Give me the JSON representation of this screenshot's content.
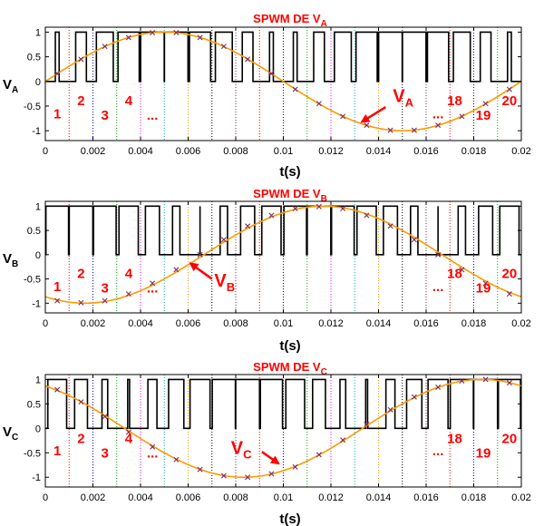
{
  "colors": {
    "sine": "#ff9900",
    "pwm": "#000000",
    "marker": "#7a2a5a",
    "annotation": "#ff0000",
    "axis": "#000000",
    "boundary_palette": [
      "#ff0000",
      "#0000ff",
      "#00aa00",
      "#ff00ff",
      "#00aaaa",
      "#ff9900",
      "#000000",
      "#7a2a5a"
    ]
  },
  "chart_data": [
    {
      "type": "line",
      "title": "SPWM DE V",
      "title_sub": "A",
      "ylabel": "V",
      "ylabel_sub": "A",
      "xlabel": "t(s)",
      "xlim": [
        0,
        0.02
      ],
      "ylim": [
        -1.2,
        1.1
      ],
      "xticks": [
        0,
        0.002,
        0.004,
        0.006,
        0.008,
        0.01,
        0.012,
        0.014,
        0.016,
        0.018,
        0.02
      ],
      "xtick_labels": [
        "0",
        "0.002",
        "0.004",
        "0.006",
        "0.008",
        "0.01",
        "0.012",
        "0.014",
        "0.016",
        "0.018",
        "0.02"
      ],
      "yticks": [
        -1,
        -0.5,
        0,
        0.5,
        1
      ],
      "ytick_labels": [
        "-1",
        "-0.5",
        "0",
        "0.5",
        "1"
      ],
      "sampling_period": 0.001,
      "sample_times": [
        0.0005,
        0.0015,
        0.0025,
        0.0035,
        0.0045,
        0.0055,
        0.0065,
        0.0075,
        0.0085,
        0.0095,
        0.0105,
        0.0115,
        0.0125,
        0.0135,
        0.0145,
        0.0155,
        0.0165,
        0.0175,
        0.0185,
        0.0195
      ],
      "series": [
        {
          "kind": "sine",
          "amplitude": 1.0,
          "phase_deg": 0,
          "frequency_hz": 50
        },
        {
          "kind": "samples",
          "values": [
            0.16,
            0.45,
            0.71,
            0.89,
            0.99,
            0.99,
            0.89,
            0.71,
            0.45,
            0.16,
            -0.16,
            -0.45,
            -0.71,
            -0.89,
            -0.99,
            -0.99,
            -0.89,
            -0.71,
            -0.45,
            -0.16
          ]
        },
        {
          "kind": "pwm",
          "duty": [
            0.16,
            0.45,
            0.71,
            0.89,
            0.99,
            0.99,
            0.89,
            0.71,
            0.45,
            0.16,
            -0.16,
            -0.45,
            -0.71,
            -0.89,
            -0.99,
            -0.99,
            -0.89,
            -0.71,
            -0.45,
            -0.16
          ]
        }
      ],
      "segment_labels": [
        {
          "text": "1",
          "x": 0.0005,
          "y": -0.75
        },
        {
          "text": "2",
          "x": 0.0015,
          "y": -0.48
        },
        {
          "text": "3",
          "x": 0.0025,
          "y": -0.78
        },
        {
          "text": "4",
          "x": 0.0035,
          "y": -0.48
        },
        {
          "text": "...",
          "x": 0.0045,
          "y": -0.78
        },
        {
          "text": "...",
          "x": 0.0165,
          "y": -0.75
        },
        {
          "text": "18",
          "x": 0.0172,
          "y": -0.48
        },
        {
          "text": "19",
          "x": 0.0184,
          "y": -0.78
        },
        {
          "text": "20",
          "x": 0.0195,
          "y": -0.48
        }
      ],
      "callout": {
        "text": "V",
        "sub": "A",
        "text_x": 0.0146,
        "text_y": -0.42,
        "arrow_from_x": 0.0143,
        "arrow_from_y": -0.52,
        "arrow_to_x": 0.0133,
        "arrow_to_y": -0.82
      }
    },
    {
      "type": "line",
      "title": "SPWM DE V",
      "title_sub": "B",
      "ylabel": "V",
      "ylabel_sub": "B",
      "xlabel": "t(s)",
      "xlim": [
        0,
        0.02
      ],
      "ylim": [
        -1.2,
        1.1
      ],
      "xticks": [
        0,
        0.002,
        0.004,
        0.006,
        0.008,
        0.01,
        0.012,
        0.014,
        0.016,
        0.018,
        0.02
      ],
      "xtick_labels": [
        "0",
        "0.002",
        "0.004",
        "0.006",
        "0.008",
        "0.01",
        "0.012",
        "0.014",
        "0.016",
        "0.018",
        "0.02"
      ],
      "yticks": [
        -1,
        -0.5,
        0,
        0.5,
        1
      ],
      "ytick_labels": [
        "-1",
        "-0.5",
        "0",
        "0.5",
        "1"
      ],
      "sampling_period": 0.001,
      "sample_times": [
        0.0005,
        0.0015,
        0.0025,
        0.0035,
        0.0045,
        0.0055,
        0.0065,
        0.0075,
        0.0085,
        0.0095,
        0.0105,
        0.0115,
        0.0125,
        0.0135,
        0.0145,
        0.0155,
        0.0165,
        0.0175,
        0.0185,
        0.0195
      ],
      "series": [
        {
          "kind": "sine",
          "amplitude": 1.0,
          "phase_deg": -120,
          "frequency_hz": 50
        },
        {
          "kind": "samples",
          "values": [
            -0.95,
            -0.99,
            -0.95,
            -0.81,
            -0.59,
            -0.31,
            0.0,
            0.31,
            0.59,
            0.81,
            0.95,
            0.99,
            0.95,
            0.81,
            0.59,
            0.31,
            0.0,
            -0.31,
            -0.59,
            -0.81
          ]
        },
        {
          "kind": "pwm",
          "duty": [
            -0.95,
            -0.99,
            -0.95,
            -0.81,
            -0.59,
            -0.31,
            0.0,
            0.31,
            0.59,
            0.81,
            0.95,
            0.99,
            0.95,
            0.81,
            0.59,
            0.31,
            0.0,
            -0.31,
            -0.59,
            -0.81
          ]
        }
      ],
      "segment_labels": [
        {
          "text": "1",
          "x": 0.0005,
          "y": -0.75
        },
        {
          "text": "2",
          "x": 0.0015,
          "y": -0.48
        },
        {
          "text": "3",
          "x": 0.0025,
          "y": -0.78
        },
        {
          "text": "4",
          "x": 0.0035,
          "y": -0.48
        },
        {
          "text": "...",
          "x": 0.0045,
          "y": -0.78
        },
        {
          "text": "...",
          "x": 0.0165,
          "y": -0.75
        },
        {
          "text": "18",
          "x": 0.0172,
          "y": -0.48
        },
        {
          "text": "19",
          "x": 0.0184,
          "y": -0.78
        },
        {
          "text": "20",
          "x": 0.0195,
          "y": -0.48
        }
      ],
      "callout": {
        "text": "V",
        "sub": "B",
        "text_x": 0.0071,
        "text_y": -0.66,
        "arrow_from_x": 0.007,
        "arrow_from_y": -0.5,
        "arrow_to_x": 0.0061,
        "arrow_to_y": -0.18
      }
    },
    {
      "type": "line",
      "title": "SPWM DE V",
      "title_sub": "C",
      "ylabel": "V",
      "ylabel_sub": "C",
      "xlabel": "t(s)",
      "xlim": [
        0,
        0.02
      ],
      "ylim": [
        -1.2,
        1.1
      ],
      "xticks": [
        0,
        0.002,
        0.004,
        0.006,
        0.008,
        0.01,
        0.012,
        0.014,
        0.016,
        0.018,
        0.02
      ],
      "xtick_labels": [
        "0",
        "0.002",
        "0.004",
        "0.006",
        "0.008",
        "0.01",
        "0.012",
        "0.014",
        "0.016",
        "0.018",
        "0.02"
      ],
      "yticks": [
        -1,
        -0.5,
        0,
        0.5,
        1
      ],
      "ytick_labels": [
        "-1",
        "-0.5",
        "0",
        "0.5",
        "1"
      ],
      "sampling_period": 0.001,
      "sample_times": [
        0.0005,
        0.0015,
        0.0025,
        0.0035,
        0.0045,
        0.0055,
        0.0065,
        0.0075,
        0.0085,
        0.0095,
        0.0105,
        0.0115,
        0.0125,
        0.0135,
        0.0145,
        0.0155,
        0.0165,
        0.0175,
        0.0185,
        0.0195
      ],
      "series": [
        {
          "kind": "sine",
          "amplitude": 1.0,
          "phase_deg": 120,
          "frequency_hz": 50
        },
        {
          "kind": "samples",
          "values": [
            0.79,
            0.54,
            0.24,
            -0.08,
            -0.38,
            -0.64,
            -0.84,
            -0.97,
            -1.0,
            -0.93,
            -0.79,
            -0.54,
            -0.24,
            0.08,
            0.38,
            0.64,
            0.84,
            0.97,
            1.0,
            0.93
          ]
        },
        {
          "kind": "pwm",
          "duty": [
            0.79,
            0.54,
            0.24,
            -0.08,
            -0.38,
            -0.64,
            -0.84,
            -0.97,
            -1.0,
            -0.93,
            -0.79,
            -0.54,
            -0.24,
            0.08,
            0.38,
            0.64,
            0.84,
            0.97,
            1.0,
            0.93
          ]
        }
      ],
      "segment_labels": [
        {
          "text": "1",
          "x": 0.0005,
          "y": -0.55
        },
        {
          "text": "2",
          "x": 0.0015,
          "y": -0.3
        },
        {
          "text": "3",
          "x": 0.0025,
          "y": -0.6
        },
        {
          "text": "4",
          "x": 0.0035,
          "y": -0.3
        },
        {
          "text": "...",
          "x": 0.0045,
          "y": -0.6
        },
        {
          "text": "...",
          "x": 0.0165,
          "y": -0.55
        },
        {
          "text": "18",
          "x": 0.0172,
          "y": -0.3
        },
        {
          "text": "19",
          "x": 0.0184,
          "y": -0.6
        },
        {
          "text": "20",
          "x": 0.0195,
          "y": -0.3
        }
      ],
      "callout": {
        "text": "V",
        "sub": "C",
        "text_x": 0.0078,
        "text_y": -0.52,
        "arrow_from_x": 0.0091,
        "arrow_from_y": -0.48,
        "arrow_to_x": 0.0098,
        "arrow_to_y": -0.72
      }
    }
  ]
}
